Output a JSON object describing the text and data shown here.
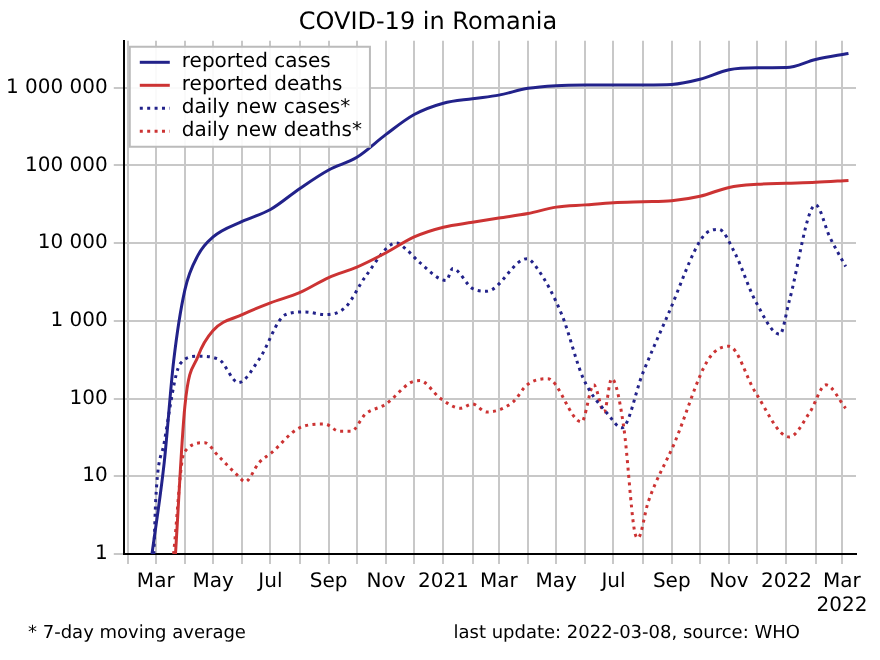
{
  "chart_data": {
    "type": "line",
    "title": "COVID-19 in Romania",
    "log": "y",
    "grid": true,
    "legend": "top left",
    "marker": "none",
    "xlim": [
      "2020-01-27",
      "2022-03-16"
    ],
    "xticks": [
      {
        "value": "2020-02-01",
        "label": null
      },
      {
        "value": "2020-03-01",
        "label": "Mar"
      },
      {
        "value": "2020-04-01",
        "label": null
      },
      {
        "value": "2020-05-01",
        "label": "May"
      },
      {
        "value": "2020-06-01",
        "label": null
      },
      {
        "value": "2020-07-01",
        "label": "Jul"
      },
      {
        "value": "2020-08-01",
        "label": null
      },
      {
        "value": "2020-09-01",
        "label": "Sep"
      },
      {
        "value": "2020-10-01",
        "label": null
      },
      {
        "value": "2020-11-01",
        "label": "Nov"
      },
      {
        "value": "2020-12-01",
        "label": null
      },
      {
        "value": "2021-01-01",
        "label": "2021"
      },
      {
        "value": "2021-02-01",
        "label": null
      },
      {
        "value": "2021-03-01",
        "label": "Mar"
      },
      {
        "value": "2021-04-01",
        "label": null
      },
      {
        "value": "2021-05-01",
        "label": "May"
      },
      {
        "value": "2021-06-01",
        "label": null
      },
      {
        "value": "2021-07-01",
        "label": "Jul"
      },
      {
        "value": "2021-08-01",
        "label": null
      },
      {
        "value": "2021-09-01",
        "label": "Sep"
      },
      {
        "value": "2021-10-01",
        "label": null
      },
      {
        "value": "2021-11-01",
        "label": "Nov"
      },
      {
        "value": "2021-12-01",
        "label": null
      },
      {
        "value": "2022-01-01",
        "label": "2022"
      },
      {
        "value": "2022-02-01",
        "label": null
      },
      {
        "value": "2022-03-01",
        "label": "Mar 2022"
      }
    ],
    "ylim": [
      1,
      4000000
    ],
    "yticks": [
      1,
      10,
      100,
      {
        "value": 1000,
        "label": "1 000"
      },
      {
        "value": 10000,
        "label": "10 000"
      },
      {
        "value": 100000,
        "label": "100 000"
      },
      {
        "value": 1000000,
        "label": "1 000 000"
      }
    ],
    "series": [
      {
        "name": "reported cases",
        "color": "#22228a",
        "line_style": "solid",
        "x": [
          "2020-02-26",
          "2020-03-10",
          "2020-03-20",
          "2020-04-01",
          "2020-04-15",
          "2020-05-01",
          "2020-06-01",
          "2020-07-01",
          "2020-08-01",
          "2020-09-01",
          "2020-10-01",
          "2020-11-01",
          "2020-12-01",
          "2021-01-01",
          "2021-02-01",
          "2021-03-01",
          "2021-04-01",
          "2021-05-01",
          "2021-06-01",
          "2021-07-01",
          "2021-08-01",
          "2021-09-01",
          "2021-10-01",
          "2021-11-01",
          "2021-12-01",
          "2022-01-01",
          "2022-02-01",
          "2022-03-08"
        ],
        "values": [
          1,
          15,
          300,
          2500,
          7000,
          12000,
          19000,
          27000,
          50000,
          87000,
          127000,
          250000,
          450000,
          630000,
          720000,
          800000,
          980000,
          1060000,
          1080000,
          1081000,
          1083000,
          1100000,
          1280000,
          1700000,
          1800000,
          1810000,
          2300000,
          2750000
        ]
      },
      {
        "name": "reported deaths",
        "color": "#cc3333",
        "line_style": "solid",
        "x": [
          "2020-03-22",
          "2020-04-01",
          "2020-04-15",
          "2020-05-01",
          "2020-06-01",
          "2020-07-01",
          "2020-08-01",
          "2020-09-01",
          "2020-10-01",
          "2020-11-01",
          "2020-12-01",
          "2021-01-01",
          "2021-02-01",
          "2021-03-01",
          "2021-04-01",
          "2021-05-01",
          "2021-06-01",
          "2021-07-01",
          "2021-08-01",
          "2021-09-01",
          "2021-10-01",
          "2021-11-01",
          "2021-12-01",
          "2022-01-01",
          "2022-02-01",
          "2022-03-08"
        ],
        "values": [
          1,
          80,
          350,
          750,
          1200,
          1700,
          2300,
          3600,
          4900,
          7500,
          12000,
          16000,
          18500,
          21000,
          24000,
          29000,
          31000,
          33000,
          34000,
          35000,
          40000,
          52000,
          57000,
          58800,
          60500,
          64000
        ]
      },
      {
        "name": "daily new cases*",
        "color": "#22228a",
        "line_style": "dotted",
        "x": [
          "2020-02-28",
          "2020-03-01",
          "2020-03-10",
          "2020-03-27",
          "2020-04-15",
          "2020-05-07",
          "2020-05-28",
          "2020-06-19",
          "2020-07-17",
          "2020-08-07",
          "2020-08-28",
          "2020-09-19",
          "2020-10-10",
          "2020-11-12",
          "2020-11-22",
          "2020-12-07",
          "2021-01-04",
          "2021-01-11",
          "2021-02-01",
          "2021-02-16",
          "2021-03-31",
          "2021-04-11",
          "2021-05-07",
          "2021-05-30",
          "2021-06-25",
          "2021-07-10",
          "2021-08-01",
          "2021-08-28",
          "2021-10-04",
          "2021-10-21",
          "2021-11-07",
          "2021-11-29",
          "2021-12-25",
          "2022-01-04",
          "2022-02-01",
          "2022-02-16",
          "2022-03-05"
        ],
        "values": [
          1,
          5,
          27,
          280,
          350,
          320,
          160,
          320,
          1200,
          1300,
          1200,
          1500,
          3700,
          10000,
          8400,
          5600,
          3300,
          4700,
          2600,
          2400,
          6300,
          4700,
          1200,
          180,
          63,
          42,
          210,
          1200,
          12000,
          15000,
          7500,
          1800,
          670,
          1800,
          31000,
          12000,
          5000
        ]
      },
      {
        "name": "daily new deaths*",
        "color": "#cc3333",
        "line_style": "dotted",
        "x": [
          "2020-03-20",
          "2020-03-31",
          "2020-04-22",
          "2020-05-07",
          "2020-05-28",
          "2020-06-04",
          "2020-06-19",
          "2020-07-02",
          "2020-08-01",
          "2020-08-28",
          "2020-09-12",
          "2020-09-25",
          "2020-10-10",
          "2020-11-01",
          "2020-11-27",
          "2020-12-07",
          "2020-12-29",
          "2021-01-19",
          "2021-02-01",
          "2021-02-16",
          "2021-03-16",
          "2021-03-31",
          "2021-04-22",
          "2021-05-28",
          "2021-06-10",
          "2021-06-21",
          "2021-06-29",
          "2021-07-12",
          "2021-07-23",
          "2021-07-27",
          "2021-08-07",
          "2021-09-04",
          "2021-10-10",
          "2021-11-01",
          "2021-11-29",
          "2022-01-04",
          "2022-01-26",
          "2022-02-12",
          "2022-03-05"
        ],
        "values": [
          1,
          20,
          27,
          18,
          10,
          8.5,
          15,
          20,
          42,
          47,
          38,
          38,
          63,
          85,
          160,
          170,
          100,
          75,
          85,
          67,
          90,
          150,
          180,
          50,
          150,
          67,
          180,
          42,
          2.1,
          1.6,
          4.7,
          27,
          320,
          470,
          120,
          32,
          67,
          150,
          75
        ]
      }
    ],
    "annotations": [
      "* 7-day moving average",
      "last update: 2022-03-08, source: WHO"
    ]
  }
}
